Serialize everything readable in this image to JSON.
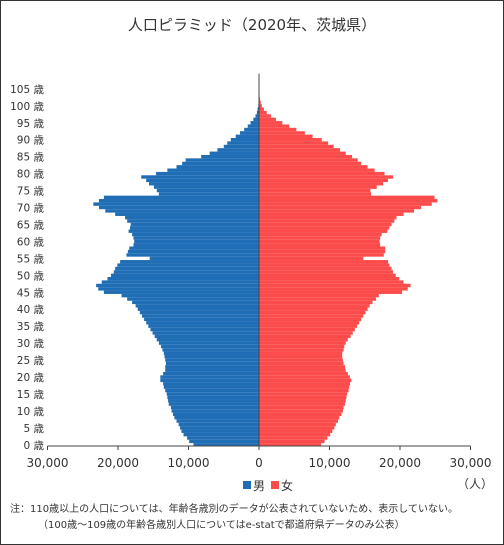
{
  "chart_data": {
    "type": "bar",
    "orientation": "horizontal-population-pyramid",
    "title": "人口ピラミッド（2020年、茨城県）",
    "y_tick_labels": [
      "0 歳",
      "5 歳",
      "10 歳",
      "15 歳",
      "20 歳",
      "25 歳",
      "30 歳",
      "35 歳",
      "40 歳",
      "45 歳",
      "50 歳",
      "55 歳",
      "60 歳",
      "65 歳",
      "70 歳",
      "75 歳",
      "80 歳",
      "85 歳",
      "90 歳",
      "95 歳",
      "100 歳",
      "105 歳"
    ],
    "x_tick_labels": [
      "30,000",
      "20,000",
      "10,000",
      "0",
      "10,000",
      "20,000",
      "30,000"
    ],
    "x_unit_label": "（人）",
    "xlim": [
      -30000,
      30000
    ],
    "ages": [
      0,
      1,
      2,
      3,
      4,
      5,
      6,
      7,
      8,
      9,
      10,
      11,
      12,
      13,
      14,
      15,
      16,
      17,
      18,
      19,
      20,
      21,
      22,
      23,
      24,
      25,
      26,
      27,
      28,
      29,
      30,
      31,
      32,
      33,
      34,
      35,
      36,
      37,
      38,
      39,
      40,
      41,
      42,
      43,
      44,
      45,
      46,
      47,
      48,
      49,
      50,
      51,
      52,
      53,
      54,
      55,
      56,
      57,
      58,
      59,
      60,
      61,
      62,
      63,
      64,
      65,
      66,
      67,
      68,
      69,
      70,
      71,
      72,
      73,
      74,
      75,
      76,
      77,
      78,
      79,
      80,
      81,
      82,
      83,
      84,
      85,
      86,
      87,
      88,
      89,
      90,
      91,
      92,
      93,
      94,
      95,
      96,
      97,
      98,
      99,
      100,
      101,
      102,
      103,
      104,
      105,
      106,
      107,
      108,
      109
    ],
    "series": [
      {
        "name": "男",
        "color": "#1f6db5",
        "values": [
          9300,
          9900,
          10200,
          10700,
          11000,
          11200,
          11400,
          11700,
          12000,
          12200,
          12400,
          12500,
          12800,
          12900,
          13000,
          13100,
          13300,
          13500,
          13600,
          14000,
          14000,
          13600,
          13300,
          13300,
          13200,
          13300,
          13400,
          13500,
          13700,
          13900,
          14200,
          14500,
          14800,
          15100,
          15400,
          15700,
          16000,
          16300,
          16600,
          16900,
          17200,
          17500,
          18000,
          18700,
          19500,
          22000,
          22800,
          23100,
          22300,
          21500,
          21000,
          20600,
          20400,
          20100,
          19700,
          15500,
          18800,
          18600,
          18400,
          17800,
          17700,
          17800,
          18000,
          18500,
          18300,
          18200,
          18700,
          19000,
          20400,
          21800,
          22700,
          23500,
          22700,
          22000,
          14200,
          14500,
          14900,
          15600,
          16000,
          16700,
          14600,
          13000,
          11700,
          10900,
          10400,
          8200,
          7000,
          5900,
          5000,
          4500,
          4000,
          3300,
          2700,
          2100,
          1600,
          1200,
          800,
          500,
          300,
          200,
          100,
          60,
          30,
          20,
          10,
          5,
          3,
          2,
          1,
          1
        ]
      },
      {
        "name": "女",
        "color": "#fb4b4b",
        "values": [
          8800,
          9300,
          9700,
          10100,
          10400,
          10700,
          10900,
          11200,
          11400,
          11700,
          11900,
          12000,
          12200,
          12300,
          12400,
          12500,
          12700,
          12800,
          12900,
          13100,
          12900,
          12600,
          12300,
          12200,
          12000,
          11900,
          11800,
          11800,
          12000,
          12100,
          12300,
          12600,
          13000,
          13300,
          13600,
          13900,
          14200,
          14500,
          14800,
          15100,
          15400,
          15700,
          16100,
          16600,
          17000,
          20300,
          21100,
          21500,
          20500,
          19900,
          19400,
          19000,
          18800,
          18500,
          18300,
          14800,
          17700,
          17900,
          17900,
          17200,
          17100,
          17200,
          17400,
          18200,
          18500,
          18800,
          19200,
          19500,
          20500,
          22000,
          23000,
          24500,
          25300,
          24900,
          15900,
          15800,
          16700,
          17600,
          18300,
          19000,
          17800,
          16400,
          15400,
          14500,
          14000,
          13200,
          12300,
          11500,
          10600,
          9800,
          8900,
          7600,
          6500,
          5300,
          4300,
          3300,
          2400,
          1700,
          1100,
          700,
          400,
          250,
          150,
          80,
          40,
          20,
          10,
          5,
          3,
          2
        ]
      }
    ],
    "legend": {
      "position": "bottom-center",
      "items": [
        "男",
        "女"
      ]
    },
    "grid": false
  },
  "notes": [
    "注：110歳以上の人口については、年齢各歳別のデータが公表されていないため、表示していない。",
    "（100歳～109歳の年齢各歳別人口についてはe-statで都道府県データのみ公表）"
  ]
}
